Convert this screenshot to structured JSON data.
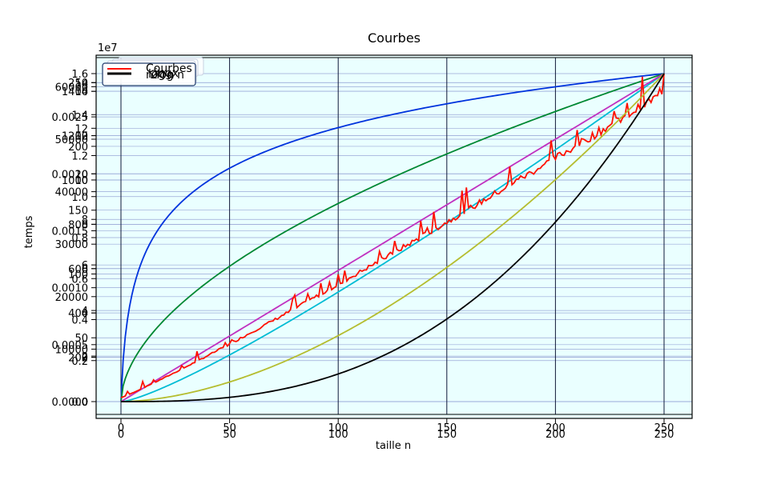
{
  "chart_data": {
    "type": "line",
    "title": "Courbes",
    "xlabel": "taille n",
    "ylabel": "temps",
    "offset_label": "1e7",
    "xlim": [
      0,
      250
    ],
    "x_tick_labels": [
      "0",
      "50",
      "100",
      "150",
      "200",
      "250"
    ],
    "grid": true,
    "legend_placement": "top-left",
    "legend_entries": [
      "Courbes",
      "n log n",
      "2^n",
      "log",
      "ingx"
    ],
    "y_tick_groups": [
      {
        "labels": [
          "0.0",
          "0.2",
          "0.4",
          "0.6",
          "0.8",
          "1.0",
          "1.2",
          "1.4",
          "1.6"
        ],
        "values": [
          0,
          0.2,
          0.4,
          0.6,
          0.8,
          1.0,
          1.2,
          1.4,
          1.6
        ],
        "max": 1.6
      },
      {
        "labels": [
          "0",
          "2",
          "4",
          "6",
          "8",
          "10",
          "12",
          "14"
        ],
        "values": [
          0,
          2,
          4,
          6,
          8,
          10,
          12,
          14
        ],
        "max": 14.8
      },
      {
        "labels": [
          "0",
          "200",
          "400",
          "600",
          "800",
          "1000",
          "1200",
          "1400"
        ],
        "values": [
          0,
          200,
          400,
          600,
          800,
          1000,
          1200,
          1400
        ],
        "max": 1480
      },
      {
        "labels": [
          "0",
          "50",
          "100",
          "150",
          "200",
          "250"
        ],
        "values": [
          0,
          50,
          100,
          150,
          200,
          250
        ],
        "max": 257
      },
      {
        "labels": [
          "0",
          "10000",
          "20000",
          "30000",
          "40000",
          "50000",
          "60000"
        ],
        "values": [
          0,
          10000,
          20000,
          30000,
          40000,
          50000,
          60000
        ],
        "max": 62500
      },
      {
        "labels": [
          "0.0000",
          "0.0005",
          "0.0010",
          "0.0015",
          "0.0020",
          "0.0025"
        ],
        "values": [
          0,
          0.0005,
          0.001,
          0.0015,
          0.002,
          0.0025
        ],
        "max": 0.00288
      },
      {
        "labels": [
          "0",
          "2",
          "4",
          "6",
          "8",
          "10",
          "12",
          "14"
        ],
        "values": [
          0,
          2,
          4,
          6,
          8,
          10,
          12,
          14
        ],
        "max": 14.4
      }
    ],
    "series": [
      {
        "color": "#0033dd",
        "kind": "log",
        "y_end": 1
      },
      {
        "color": "#008833",
        "kind": "sqrt",
        "y_end": 1
      },
      {
        "color": "#00bcd4",
        "kind": "n log n",
        "y_end": 1
      },
      {
        "color": "#c030c0",
        "kind": "linear",
        "y_end": 1
      },
      {
        "color": "#ff1100",
        "kind": "measured",
        "y_end": 1
      },
      {
        "color": "#b5bd2f",
        "kind": "n^2",
        "y_end": 1
      },
      {
        "color": "#000000",
        "kind": "n^3",
        "y_end": 1
      }
    ],
    "colors": {
      "background": "#eaffff",
      "grid": "#9aa8d8",
      "vgrid": "#101838",
      "legend_edge": "#1f3a6b"
    }
  }
}
